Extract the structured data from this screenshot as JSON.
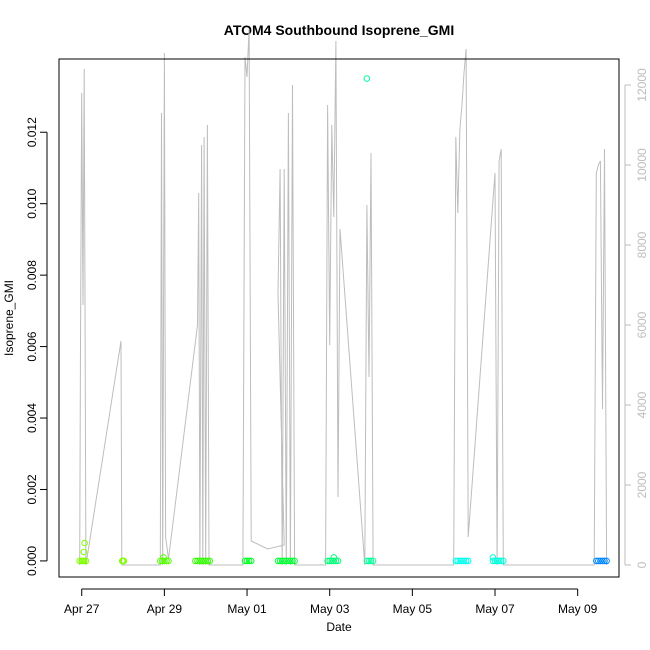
{
  "chart_data": {
    "type": "scatter",
    "title": "ATOM4 Southbound Isoprene_GMI",
    "xlabel": "Date",
    "ylabel": "Isoprene_GMI",
    "x_ticks": [
      "Apr 27",
      "Apr 29",
      "May 01",
      "May 03",
      "May 05",
      "May 07",
      "May 09"
    ],
    "x_tick_days": [
      0,
      2,
      4,
      6,
      8,
      10,
      12
    ],
    "xlim_days": [
      -0.55,
      13.0
    ],
    "ylim": [
      -0.00045,
      0.01405
    ],
    "y_ticks": [
      0.0,
      0.002,
      0.004,
      0.006,
      0.008,
      0.01,
      0.012
    ],
    "y_tick_labels": [
      "0.000",
      "0.002",
      "0.004",
      "0.006",
      "0.008",
      "0.010",
      "0.012"
    ],
    "secondary_axis": {
      "ylim": [
        -300,
        12650
      ],
      "ticks": [
        0,
        2000,
        4000,
        6000,
        8000,
        10000,
        12000
      ],
      "tick_labels": [
        "0",
        "2000",
        "4000",
        "6000",
        "8000",
        "10000",
        "12000"
      ],
      "color": "#bdbdbd"
    },
    "altitude_trace": [
      [
        -0.05,
        0
      ],
      [
        -0.03,
        5600
      ],
      [
        0.0,
        11800
      ],
      [
        0.03,
        6500
      ],
      [
        0.06,
        12400
      ],
      [
        0.1,
        0
      ],
      [
        0.95,
        5600
      ],
      [
        0.97,
        0
      ],
      [
        1.9,
        0
      ],
      [
        1.93,
        11300
      ],
      [
        1.96,
        0
      ],
      [
        2.0,
        12800
      ],
      [
        2.03,
        700
      ],
      [
        2.1,
        150
      ],
      [
        2.8,
        6000
      ],
      [
        2.83,
        9300
      ],
      [
        2.86,
        0
      ],
      [
        2.9,
        10500
      ],
      [
        2.93,
        0
      ],
      [
        2.96,
        10700
      ],
      [
        3.0,
        0
      ],
      [
        3.04,
        11000
      ],
      [
        3.08,
        0
      ],
      [
        3.9,
        0
      ],
      [
        3.95,
        12700
      ],
      [
        4.0,
        12200
      ],
      [
        4.05,
        13400
      ],
      [
        4.1,
        600
      ],
      [
        4.5,
        400
      ],
      [
        4.9,
        500
      ],
      [
        4.75,
        6800
      ],
      [
        4.8,
        9900
      ],
      [
        4.85,
        0
      ],
      [
        4.9,
        9900
      ],
      [
        4.95,
        0
      ],
      [
        5.0,
        11300
      ],
      [
        5.05,
        0
      ],
      [
        5.1,
        12000
      ],
      [
        5.15,
        0
      ],
      [
        5.9,
        0
      ],
      [
        5.95,
        11500
      ],
      [
        6.0,
        5500
      ],
      [
        6.05,
        11000
      ],
      [
        6.1,
        8700
      ],
      [
        6.15,
        13100
      ],
      [
        6.2,
        1700
      ],
      [
        6.25,
        8400
      ],
      [
        6.85,
        0
      ],
      [
        6.9,
        9000
      ],
      [
        6.95,
        4700
      ],
      [
        7.0,
        10300
      ],
      [
        7.05,
        0
      ],
      [
        9.0,
        0
      ],
      [
        9.05,
        10700
      ],
      [
        9.1,
        8800
      ],
      [
        9.15,
        10900
      ],
      [
        9.2,
        11500
      ],
      [
        9.25,
        12300
      ],
      [
        9.3,
        12900
      ],
      [
        9.35,
        700
      ],
      [
        10.0,
        9800
      ],
      [
        10.05,
        0
      ],
      [
        10.1,
        10100
      ],
      [
        10.15,
        10400
      ],
      [
        10.2,
        0
      ],
      [
        12.4,
        0
      ],
      [
        12.45,
        9800
      ],
      [
        12.5,
        10000
      ],
      [
        12.55,
        10100
      ],
      [
        12.6,
        3900
      ],
      [
        12.65,
        10400
      ],
      [
        12.7,
        0
      ]
    ],
    "series": [
      {
        "color": "#80ff00",
        "x": [
          -0.05,
          0.0,
          0.03,
          0.06,
          0.1,
          0.98,
          1.0,
          1.02,
          0.05,
          0.07
        ],
        "y": [
          0.0,
          0.0,
          0.0,
          0.0,
          0.0,
          0.0,
          0.0,
          0.0,
          0.00025,
          0.0005
        ]
      },
      {
        "color": "#55ff00",
        "x": [
          1.9,
          1.95,
          2.0,
          2.05,
          2.1,
          1.98
        ],
        "y": [
          0.0,
          0.0,
          0.0,
          0.0,
          0.0,
          0.0001
        ]
      },
      {
        "color": "#33ff00",
        "x": [
          2.75,
          2.8,
          2.85,
          2.9,
          2.95,
          3.0,
          3.05,
          3.1
        ],
        "y": [
          0.0,
          0.0,
          0.0,
          0.0,
          0.0,
          0.0,
          0.0,
          0.0
        ]
      },
      {
        "color": "#00ff22",
        "x": [
          3.95,
          4.0,
          4.05,
          4.1
        ],
        "y": [
          0.0,
          0.0,
          0.0,
          0.0
        ]
      },
      {
        "color": "#00ff33",
        "x": [
          4.75,
          4.8,
          4.85,
          4.9,
          4.95,
          5.0,
          5.05,
          5.1,
          5.15
        ],
        "y": [
          0.0,
          0.0,
          0.0,
          0.0,
          0.0,
          0.0,
          0.0,
          0.0,
          0.0
        ]
      },
      {
        "color": "#00ff77",
        "x": [
          5.95,
          6.0,
          6.05,
          6.1,
          6.15,
          6.2,
          6.1
        ],
        "y": [
          0.0,
          0.0,
          0.0,
          0.0,
          0.0,
          0.0,
          0.0001
        ]
      },
      {
        "color": "#00ff99",
        "x": [
          6.9,
          6.95,
          7.0,
          7.05,
          6.9
        ],
        "y": [
          0.0,
          0.0,
          0.0,
          0.0,
          0.0135
        ]
      },
      {
        "color": "#00ffee",
        "x": [
          9.05,
          9.1,
          9.15,
          9.2,
          9.25,
          9.3,
          9.35
        ],
        "y": [
          0.0,
          0.0,
          0.0,
          0.0,
          0.0,
          0.0,
          0.0
        ]
      },
      {
        "color": "#00ffdd",
        "x": [
          9.95,
          10.0,
          10.05,
          10.1,
          10.15,
          10.2,
          9.95
        ],
        "y": [
          0.0,
          0.0,
          0.0,
          0.0,
          0.0,
          0.0,
          0.0001
        ]
      },
      {
        "color": "#0088ff",
        "x": [
          12.45,
          12.5,
          12.55,
          12.6,
          12.65,
          12.7
        ],
        "y": [
          0.0,
          0.0,
          0.0,
          0.0,
          0.0,
          0.0
        ]
      }
    ]
  }
}
